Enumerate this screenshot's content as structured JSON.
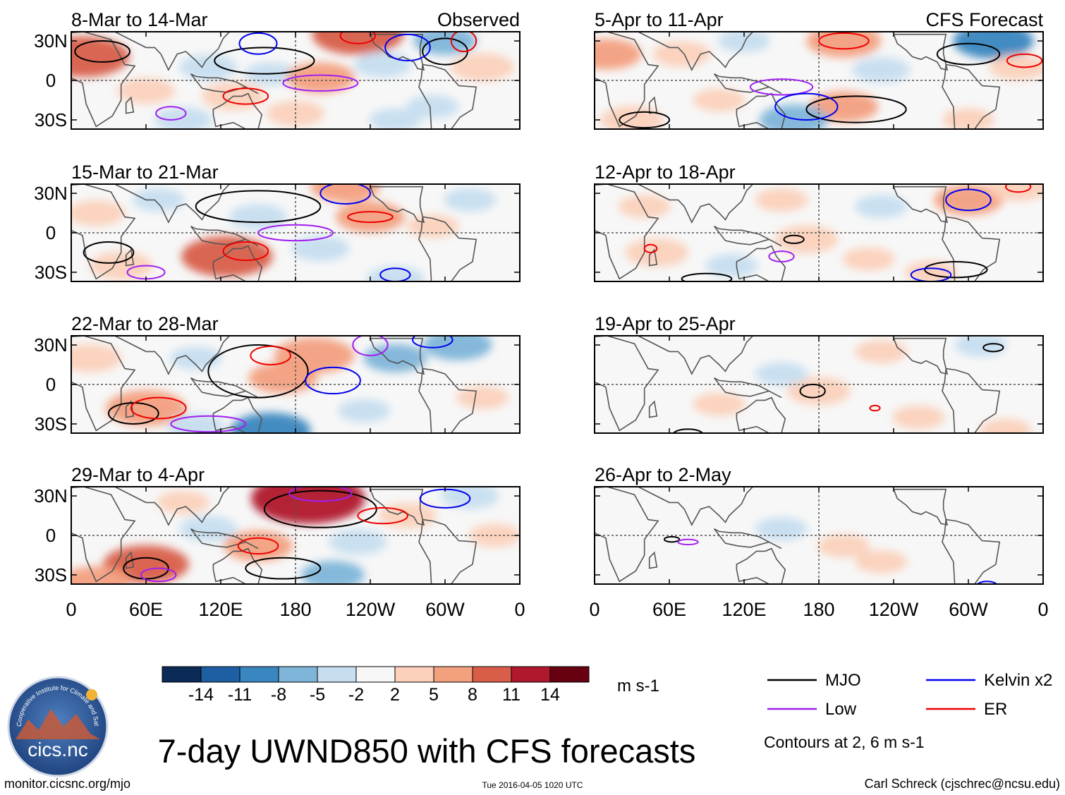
{
  "figure": {
    "title": "7-day UWND850 with CFS forecasts",
    "footer_left": "monitor.cicsnc.org/mjo",
    "footer_center": "Tue 2016-04-05 1020 UTC",
    "footer_right": "Carl Schreck (cjschrec@ncsu.edu)",
    "logo_text": "cics.nc",
    "logo_ring_text": "Cooperative Institute for Climate and Satellites"
  },
  "columns": {
    "left_label": "Observed",
    "right_label": "CFS Forecast"
  },
  "chart_data": [
    {
      "type": "heatmap",
      "variable": "850-hPa zonal wind anomaly",
      "source": "Observed",
      "title": "8-Mar to 14-Mar",
      "ylabels": [
        "30N",
        "0",
        "30S"
      ],
      "xlabels": [
        "0",
        "60E",
        "120E",
        "180",
        "120W",
        "60W",
        "0"
      ],
      "patches": [
        {
          "lon": 10,
          "lat": 18,
          "value": 10
        },
        {
          "lon": 60,
          "lat": -8,
          "value": 4
        },
        {
          "lon": 110,
          "lat": 10,
          "value": -4
        },
        {
          "lon": 130,
          "lat": -12,
          "value": 5
        },
        {
          "lon": 160,
          "lat": 5,
          "value": -3
        },
        {
          "lon": 200,
          "lat": 2,
          "value": 6
        },
        {
          "lon": 230,
          "lat": 35,
          "value": 10
        },
        {
          "lon": 250,
          "lat": 12,
          "value": -4
        },
        {
          "lon": 300,
          "lat": 30,
          "value": -5
        },
        {
          "lon": 290,
          "lat": -20,
          "value": -3
        },
        {
          "lon": 330,
          "lat": 10,
          "value": 5
        },
        {
          "lon": 90,
          "lat": -30,
          "value": -4
        },
        {
          "lon": 180,
          "lat": -25,
          "value": 4
        },
        {
          "lon": 260,
          "lat": -30,
          "value": -3
        }
      ],
      "contours": [
        {
          "kind": "MJO",
          "lon": 25,
          "lat": 22,
          "rx": 22,
          "ry": 8
        },
        {
          "kind": "MJO",
          "lon": 155,
          "lat": 15,
          "rx": 40,
          "ry": 10
        },
        {
          "kind": "MJO",
          "lon": 300,
          "lat": 22,
          "rx": 18,
          "ry": 10
        },
        {
          "kind": "Low",
          "lon": 200,
          "lat": -2,
          "rx": 30,
          "ry": 6
        },
        {
          "kind": "Low",
          "lon": 80,
          "lat": -25,
          "rx": 12,
          "ry": 5
        },
        {
          "kind": "Kelvin",
          "lon": 150,
          "lat": 28,
          "rx": 15,
          "ry": 8
        },
        {
          "kind": "Kelvin",
          "lon": 270,
          "lat": 25,
          "rx": 18,
          "ry": 10
        },
        {
          "kind": "ER",
          "lon": 230,
          "lat": 34,
          "rx": 14,
          "ry": 6
        },
        {
          "kind": "ER",
          "lon": 140,
          "lat": -12,
          "rx": 18,
          "ry": 6
        },
        {
          "kind": "ER",
          "lon": 315,
          "lat": 30,
          "rx": 10,
          "ry": 8
        }
      ]
    },
    {
      "type": "heatmap",
      "variable": "850-hPa zonal wind anomaly",
      "source": "Observed",
      "title": "15-Mar to 21-Mar",
      "ylabels": [
        "30N",
        "0",
        "30S"
      ],
      "xlabels": [
        "0",
        "60E",
        "120E",
        "180",
        "120W",
        "60W",
        "0"
      ],
      "patches": [
        {
          "lon": 20,
          "lat": 15,
          "value": 4
        },
        {
          "lon": 70,
          "lat": 25,
          "value": -3
        },
        {
          "lon": 125,
          "lat": -18,
          "value": 10
        },
        {
          "lon": 150,
          "lat": 12,
          "value": -4
        },
        {
          "lon": 220,
          "lat": 35,
          "value": 6
        },
        {
          "lon": 240,
          "lat": 12,
          "value": 6
        },
        {
          "lon": 200,
          "lat": -12,
          "value": -4
        },
        {
          "lon": 320,
          "lat": 25,
          "value": -3
        },
        {
          "lon": 40,
          "lat": -25,
          "value": 5
        },
        {
          "lon": 260,
          "lat": -35,
          "value": -4
        },
        {
          "lon": 290,
          "lat": 5,
          "value": 3
        }
      ],
      "contours": [
        {
          "kind": "MJO",
          "lon": 150,
          "lat": 20,
          "rx": 50,
          "ry": 12
        },
        {
          "kind": "MJO",
          "lon": 30,
          "lat": -15,
          "rx": 20,
          "ry": 8
        },
        {
          "kind": "Low",
          "lon": 180,
          "lat": 0,
          "rx": 30,
          "ry": 6
        },
        {
          "kind": "Low",
          "lon": 60,
          "lat": -30,
          "rx": 15,
          "ry": 5
        },
        {
          "kind": "Kelvin",
          "lon": 220,
          "lat": 30,
          "rx": 20,
          "ry": 8
        },
        {
          "kind": "Kelvin",
          "lon": 260,
          "lat": -32,
          "rx": 12,
          "ry": 5
        },
        {
          "kind": "ER",
          "lon": 140,
          "lat": -14,
          "rx": 18,
          "ry": 7
        },
        {
          "kind": "ER",
          "lon": 240,
          "lat": 12,
          "rx": 18,
          "ry": 4
        }
      ]
    },
    {
      "type": "heatmap",
      "variable": "850-hPa zonal wind anomaly",
      "source": "Observed",
      "title": "22-Mar to 28-Mar",
      "ylabels": [
        "30N",
        "0",
        "30S"
      ],
      "xlabels": [
        "0",
        "60E",
        "120E",
        "180",
        "120W",
        "60W",
        "0"
      ],
      "patches": [
        {
          "lon": 15,
          "lat": 20,
          "value": 5
        },
        {
          "lon": 60,
          "lat": -18,
          "value": 8
        },
        {
          "lon": 100,
          "lat": 20,
          "value": -3
        },
        {
          "lon": 170,
          "lat": 5,
          "value": 6
        },
        {
          "lon": 195,
          "lat": 22,
          "value": 8
        },
        {
          "lon": 160,
          "lat": -35,
          "value": -8
        },
        {
          "lon": 260,
          "lat": 20,
          "value": -5
        },
        {
          "lon": 310,
          "lat": 30,
          "value": -6
        },
        {
          "lon": 100,
          "lat": -32,
          "value": -4
        },
        {
          "lon": 330,
          "lat": -10,
          "value": 3
        },
        {
          "lon": 235,
          "lat": -20,
          "value": -3
        }
      ],
      "contours": [
        {
          "kind": "MJO",
          "lon": 150,
          "lat": 10,
          "rx": 40,
          "ry": 20
        },
        {
          "kind": "MJO",
          "lon": 50,
          "lat": -22,
          "rx": 20,
          "ry": 8
        },
        {
          "kind": "Low",
          "lon": 110,
          "lat": -30,
          "rx": 30,
          "ry": 6
        },
        {
          "kind": "Low",
          "lon": 240,
          "lat": 30,
          "rx": 14,
          "ry": 8
        },
        {
          "kind": "Kelvin",
          "lon": 210,
          "lat": 3,
          "rx": 22,
          "ry": 10
        },
        {
          "kind": "Kelvin",
          "lon": 290,
          "lat": 34,
          "rx": 16,
          "ry": 6
        },
        {
          "kind": "ER",
          "lon": 70,
          "lat": -18,
          "rx": 22,
          "ry": 8
        },
        {
          "kind": "ER",
          "lon": 160,
          "lat": 22,
          "rx": 16,
          "ry": 7
        }
      ]
    },
    {
      "type": "heatmap",
      "variable": "850-hPa zonal wind anomaly",
      "source": "Observed",
      "title": "29-Mar to 4-Apr",
      "ylabels": [
        "30N",
        "0",
        "30S"
      ],
      "xlabels": [
        "0",
        "60E",
        "120E",
        "180",
        "120W",
        "60W",
        "0"
      ],
      "patches": [
        {
          "lon": 190,
          "lat": 28,
          "value": 14
        },
        {
          "lon": 60,
          "lat": -22,
          "value": 9
        },
        {
          "lon": 150,
          "lat": -8,
          "value": 6
        },
        {
          "lon": 110,
          "lat": 5,
          "value": -4
        },
        {
          "lon": 230,
          "lat": -5,
          "value": -4
        },
        {
          "lon": 210,
          "lat": -30,
          "value": -5
        },
        {
          "lon": 270,
          "lat": 15,
          "value": 4
        },
        {
          "lon": 320,
          "lat": 30,
          "value": -4
        },
        {
          "lon": 20,
          "lat": -35,
          "value": 6
        },
        {
          "lon": 90,
          "lat": 25,
          "value": 3
        },
        {
          "lon": 340,
          "lat": 0,
          "value": 3
        }
      ],
      "contours": [
        {
          "kind": "MJO",
          "lon": 200,
          "lat": 20,
          "rx": 45,
          "ry": 14
        },
        {
          "kind": "MJO",
          "lon": 60,
          "lat": -25,
          "rx": 18,
          "ry": 8
        },
        {
          "kind": "MJO",
          "lon": 170,
          "lat": -25,
          "rx": 30,
          "ry": 8
        },
        {
          "kind": "Low",
          "lon": 200,
          "lat": 32,
          "rx": 25,
          "ry": 6
        },
        {
          "kind": "Low",
          "lon": 70,
          "lat": -30,
          "rx": 14,
          "ry": 5
        },
        {
          "kind": "Kelvin",
          "lon": 300,
          "lat": 28,
          "rx": 20,
          "ry": 7
        },
        {
          "kind": "ER",
          "lon": 150,
          "lat": -8,
          "rx": 16,
          "ry": 6
        },
        {
          "kind": "ER",
          "lon": 250,
          "lat": 15,
          "rx": 20,
          "ry": 6
        }
      ]
    },
    {
      "type": "heatmap",
      "variable": "850-hPa zonal wind anomaly",
      "source": "CFS Forecast",
      "title": "5-Apr to 11-Apr",
      "ylabels": [
        "30N",
        "0",
        "30S"
      ],
      "xlabels": [
        "0",
        "60E",
        "120E",
        "180",
        "120W",
        "60W",
        "0"
      ],
      "patches": [
        {
          "lon": 10,
          "lat": 20,
          "value": 6
        },
        {
          "lon": 70,
          "lat": 20,
          "value": 4
        },
        {
          "lon": 200,
          "lat": 30,
          "value": 7
        },
        {
          "lon": 230,
          "lat": 8,
          "value": -4
        },
        {
          "lon": 200,
          "lat": -20,
          "value": 6
        },
        {
          "lon": 160,
          "lat": -30,
          "value": -6
        },
        {
          "lon": 100,
          "lat": -15,
          "value": 3
        },
        {
          "lon": 320,
          "lat": 30,
          "value": -8
        },
        {
          "lon": 340,
          "lat": 10,
          "value": 4
        },
        {
          "lon": 300,
          "lat": -30,
          "value": 3
        },
        {
          "lon": 30,
          "lat": -30,
          "value": 5
        },
        {
          "lon": 120,
          "lat": 30,
          "value": -3
        }
      ],
      "contours": [
        {
          "kind": "MJO",
          "lon": 210,
          "lat": -22,
          "rx": 40,
          "ry": 10
        },
        {
          "kind": "MJO",
          "lon": 300,
          "lat": 20,
          "rx": 25,
          "ry": 8
        },
        {
          "kind": "MJO",
          "lon": 40,
          "lat": -30,
          "rx": 20,
          "ry": 6
        },
        {
          "kind": "Low",
          "lon": 150,
          "lat": -5,
          "rx": 25,
          "ry": 6
        },
        {
          "kind": "Kelvin",
          "lon": 170,
          "lat": -20,
          "rx": 25,
          "ry": 10
        },
        {
          "kind": "ER",
          "lon": 200,
          "lat": 30,
          "rx": 20,
          "ry": 6
        },
        {
          "kind": "ER",
          "lon": 345,
          "lat": 15,
          "rx": 14,
          "ry": 5
        }
      ]
    },
    {
      "type": "heatmap",
      "variable": "850-hPa zonal wind anomaly",
      "source": "CFS Forecast",
      "title": "12-Apr to 18-Apr",
      "ylabels": [
        "30N",
        "0",
        "30S"
      ],
      "xlabels": [
        "0",
        "60E",
        "120E",
        "180",
        "120W",
        "60W",
        "0"
      ],
      "patches": [
        {
          "lon": 40,
          "lat": 20,
          "value": 3
        },
        {
          "lon": 150,
          "lat": 25,
          "value": 3
        },
        {
          "lon": 230,
          "lat": 20,
          "value": -3
        },
        {
          "lon": 300,
          "lat": 25,
          "value": 6
        },
        {
          "lon": 340,
          "lat": 35,
          "value": 5
        },
        {
          "lon": 170,
          "lat": -5,
          "value": 5
        },
        {
          "lon": 220,
          "lat": -20,
          "value": 3
        },
        {
          "lon": 50,
          "lat": -15,
          "value": 5
        },
        {
          "lon": 110,
          "lat": -25,
          "value": -3
        },
        {
          "lon": 270,
          "lat": -30,
          "value": 3
        }
      ],
      "contours": [
        {
          "kind": "MJO",
          "lon": 290,
          "lat": -28,
          "rx": 25,
          "ry": 6
        },
        {
          "kind": "MJO",
          "lon": 90,
          "lat": -35,
          "rx": 20,
          "ry": 4
        },
        {
          "kind": "MJO",
          "lon": 160,
          "lat": -5,
          "rx": 8,
          "ry": 3
        },
        {
          "kind": "Low",
          "lon": 150,
          "lat": -18,
          "rx": 10,
          "ry": 4
        },
        {
          "kind": "Kelvin",
          "lon": 300,
          "lat": 25,
          "rx": 18,
          "ry": 8
        },
        {
          "kind": "Kelvin",
          "lon": 270,
          "lat": -32,
          "rx": 16,
          "ry": 5
        },
        {
          "kind": "ER",
          "lon": 340,
          "lat": 35,
          "rx": 10,
          "ry": 4
        },
        {
          "kind": "ER",
          "lon": 45,
          "lat": -12,
          "rx": 5,
          "ry": 3
        }
      ]
    },
    {
      "type": "heatmap",
      "variable": "850-hPa zonal wind anomaly",
      "source": "CFS Forecast",
      "title": "19-Apr to 25-Apr",
      "ylabels": [
        "30N",
        "0",
        "30S"
      ],
      "xlabels": [
        "0",
        "60E",
        "120E",
        "180",
        "120W",
        "60W",
        "0"
      ],
      "patches": [
        {
          "lon": 100,
          "lat": -15,
          "value": 3
        },
        {
          "lon": 180,
          "lat": -5,
          "value": 5
        },
        {
          "lon": 150,
          "lat": 8,
          "value": -3
        },
        {
          "lon": 230,
          "lat": 25,
          "value": 3
        },
        {
          "lon": 310,
          "lat": 30,
          "value": -3
        },
        {
          "lon": 60,
          "lat": 10,
          "value": 2
        },
        {
          "lon": 260,
          "lat": -25,
          "value": 3
        },
        {
          "lon": 330,
          "lat": -35,
          "value": 3
        }
      ],
      "contours": [
        {
          "kind": "MJO",
          "lon": 175,
          "lat": -5,
          "rx": 10,
          "ry": 5
        },
        {
          "kind": "MJO",
          "lon": 75,
          "lat": -38,
          "rx": 12,
          "ry": 4
        },
        {
          "kind": "MJO",
          "lon": 320,
          "lat": 28,
          "rx": 8,
          "ry": 3
        },
        {
          "kind": "ER",
          "lon": 225,
          "lat": -18,
          "rx": 4,
          "ry": 2
        }
      ]
    },
    {
      "type": "heatmap",
      "variable": "850-hPa zonal wind anomaly",
      "source": "CFS Forecast",
      "title": "26-Apr to 2-May",
      "ylabels": [
        "30N",
        "0",
        "30S"
      ],
      "xlabels": [
        "0",
        "60E",
        "120E",
        "180",
        "120W",
        "60W",
        "0"
      ],
      "patches": [
        {
          "lon": 200,
          "lat": -8,
          "value": 3
        },
        {
          "lon": 150,
          "lat": 5,
          "value": -3
        },
        {
          "lon": 60,
          "lat": -5,
          "value": 2
        },
        {
          "lon": 230,
          "lat": -20,
          "value": 3
        },
        {
          "lon": 120,
          "lat": 20,
          "value": 2
        }
      ],
      "contours": [
        {
          "kind": "MJO",
          "lon": 62,
          "lat": -3,
          "rx": 6,
          "ry": 2
        },
        {
          "kind": "Low",
          "lon": 75,
          "lat": -5,
          "rx": 8,
          "ry": 2
        },
        {
          "kind": "Kelvin",
          "lon": 315,
          "lat": -38,
          "rx": 8,
          "ry": 3
        }
      ]
    }
  ],
  "colorbar": {
    "ticks": [
      "-14",
      "-11",
      "-8",
      "-5",
      "-2",
      "2",
      "5",
      "8",
      "11",
      "14"
    ],
    "colors": [
      "#0b2a56",
      "#1e5fa3",
      "#3a86c0",
      "#7eb5d9",
      "#c6def0",
      "#f7f7f7",
      "#fbd1bb",
      "#f3a07f",
      "#d85e49",
      "#b0182d",
      "#670010"
    ],
    "units": "m s-1"
  },
  "legend": {
    "items": [
      {
        "label": "MJO",
        "color": "#000000"
      },
      {
        "label": "Kelvin x2",
        "color": "#0000ee"
      },
      {
        "label": "Low",
        "color": "#a020f0"
      },
      {
        "label": "ER",
        "color": "#ee0000"
      }
    ],
    "note": "Contours at 2, 6 m s-1"
  }
}
